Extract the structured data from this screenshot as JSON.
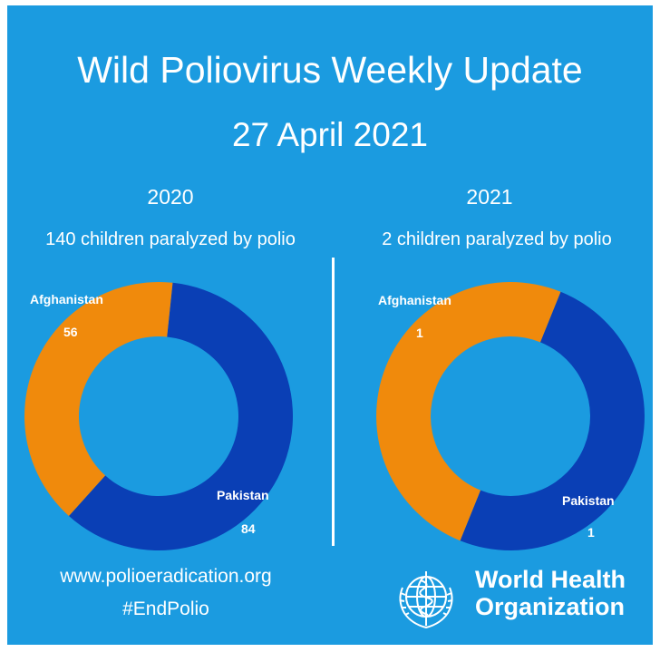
{
  "header": {
    "title": "Wild Poliovirus Weekly Update",
    "date": "27 April 2021"
  },
  "colors": {
    "background": "#1b9be0",
    "afghanistan": "#f08a0c",
    "pakistan": "#0a3fb5"
  },
  "chart_data": [
    {
      "type": "pie",
      "title": "2020",
      "subtitle": "140 children paralyzed by polio",
      "series": [
        {
          "name": "Afghanistan",
          "value": 56
        },
        {
          "name": "Pakistan",
          "value": 84
        }
      ]
    },
    {
      "type": "pie",
      "title": "2021",
      "subtitle": "2 children paralyzed by polio",
      "series": [
        {
          "name": "Afghanistan",
          "value": 1
        },
        {
          "name": "Pakistan",
          "value": 1
        }
      ]
    }
  ],
  "footer": {
    "url": "www.polioeradication.org",
    "hashtag": "#EndPolio",
    "org_line1": "World Health",
    "org_line2": "Organization"
  }
}
